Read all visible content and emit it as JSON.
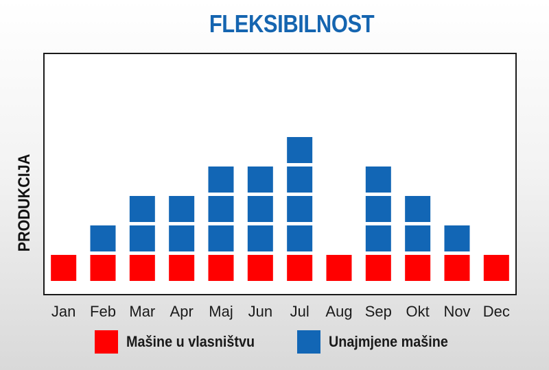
{
  "chart_data": {
    "type": "bar",
    "title": "FLEKSIBILNOST",
    "xlabel": "",
    "ylabel": "PRODUKCIJA",
    "categories": [
      "Jan",
      "Feb",
      "Mar",
      "Apr",
      "Maj",
      "Jun",
      "Jul",
      "Aug",
      "Sep",
      "Okt",
      "Nov",
      "Dec"
    ],
    "stacked": true,
    "series": [
      {
        "name": "Mašine u vlasništvu",
        "color": "#ff0000",
        "values": [
          1,
          1,
          1,
          1,
          1,
          1,
          1,
          1,
          1,
          1,
          1,
          1
        ]
      },
      {
        "name": "Unajmjene mašine",
        "color": "#1266b5",
        "values": [
          0,
          1,
          2,
          2,
          3,
          3,
          4,
          0,
          3,
          2,
          1,
          0
        ]
      }
    ],
    "ylim": [
      0,
      7.5
    ],
    "grid": false,
    "legend_position": "bottom"
  }
}
